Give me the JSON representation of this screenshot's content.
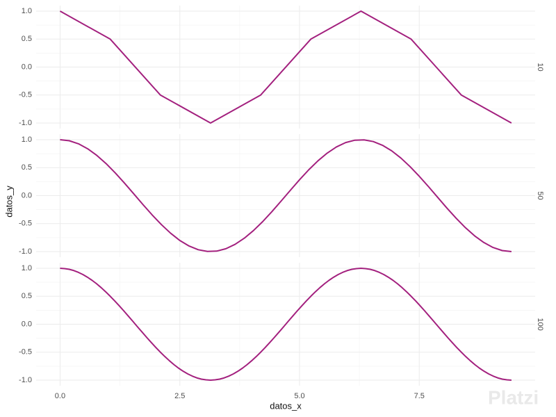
{
  "axis_labels": {
    "x": "datos_x",
    "y": "datos_y"
  },
  "watermark": "Platzi",
  "chart_data": [
    {
      "type": "line",
      "facet_label": "10",
      "color": "#a3207e",
      "x": [
        0,
        1.047,
        2.094,
        3.142,
        4.189,
        5.236,
        6.283,
        7.33,
        8.378,
        9.425
      ],
      "values": [
        1,
        0.5,
        -0.5,
        -1,
        -0.5,
        0.5,
        1,
        0.5,
        -0.5,
        -1
      ],
      "ylim": [
        -1.1,
        1.1
      ],
      "yticks": [
        {
          "value": -1,
          "label": "-1.0"
        },
        {
          "value": -0.5,
          "label": "-0.5"
        },
        {
          "value": 0,
          "label": "0.0"
        },
        {
          "value": 0.5,
          "label": "0.5"
        },
        {
          "value": 1,
          "label": "1.0"
        }
      ],
      "grid": true
    },
    {
      "type": "line",
      "facet_label": "50",
      "color": "#a3207e",
      "x": [
        0,
        0.192,
        0.385,
        0.577,
        0.769,
        0.962,
        1.154,
        1.346,
        1.539,
        1.731,
        1.923,
        2.116,
        2.308,
        2.5,
        2.693,
        2.885,
        3.077,
        3.27,
        3.462,
        3.654,
        3.847,
        4.039,
        4.232,
        4.424,
        4.616,
        4.809,
        5.001,
        5.193,
        5.386,
        5.578,
        5.77,
        5.963,
        6.155,
        6.347,
        6.54,
        6.732,
        6.924,
        7.117,
        7.309,
        7.501,
        7.694,
        7.886,
        8.078,
        8.271,
        8.463,
        8.655,
        8.848,
        9.04,
        9.232,
        9.425
      ],
      "values": [
        1,
        0.982,
        0.927,
        0.838,
        0.718,
        0.572,
        0.405,
        0.223,
        0.032,
        -0.16,
        -0.345,
        -0.518,
        -0.672,
        -0.802,
        -0.901,
        -0.967,
        -0.998,
        -0.992,
        -0.949,
        -0.871,
        -0.761,
        -0.624,
        -0.463,
        -0.285,
        -0.096,
        0.096,
        0.285,
        0.463,
        0.624,
        0.761,
        0.871,
        0.949,
        0.992,
        0.998,
        0.967,
        0.901,
        0.802,
        0.672,
        0.518,
        0.345,
        0.16,
        -0.032,
        -0.223,
        -0.405,
        -0.572,
        -0.718,
        -0.838,
        -0.927,
        -0.982,
        -1
      ],
      "ylim": [
        -1.1,
        1.1
      ],
      "yticks": [
        {
          "value": -1,
          "label": "-1.0"
        },
        {
          "value": -0.5,
          "label": "-0.5"
        },
        {
          "value": 0,
          "label": "0.0"
        },
        {
          "value": 0.5,
          "label": "0.5"
        },
        {
          "value": 1,
          "label": "1.0"
        }
      ],
      "grid": true
    },
    {
      "type": "line",
      "facet_label": "100",
      "color": "#a3207e",
      "x": [
        0,
        0.095,
        0.19,
        0.286,
        0.381,
        0.476,
        0.571,
        0.666,
        0.762,
        0.857,
        0.952,
        1.047,
        1.142,
        1.238,
        1.333,
        1.428,
        1.523,
        1.618,
        1.714,
        1.809,
        1.904,
        1.999,
        2.094,
        2.19,
        2.285,
        2.38,
        2.475,
        2.57,
        2.666,
        2.761,
        2.856,
        2.951,
        3.046,
        3.142,
        3.237,
        3.332,
        3.427,
        3.522,
        3.618,
        3.713,
        3.808,
        3.903,
        3.998,
        4.094,
        4.189,
        4.284,
        4.379,
        4.474,
        4.57,
        4.665,
        4.76,
        4.855,
        4.95,
        5.046,
        5.141,
        5.236,
        5.331,
        5.426,
        5.522,
        5.617,
        5.712,
        5.807,
        5.902,
        5.998,
        6.093,
        6.188,
        6.283,
        6.378,
        6.474,
        6.569,
        6.664,
        6.759,
        6.854,
        6.95,
        7.045,
        7.14,
        7.235,
        7.33,
        7.426,
        7.521,
        7.616,
        7.711,
        7.806,
        7.902,
        7.997,
        8.092,
        8.187,
        8.282,
        8.378,
        8.473,
        8.568,
        8.663,
        8.758,
        8.854,
        8.949,
        9.044,
        9.139,
        9.234,
        9.33,
        9.425
      ],
      "values": [
        1,
        0.995,
        0.982,
        0.96,
        0.928,
        0.889,
        0.841,
        0.786,
        0.724,
        0.655,
        0.58,
        0.5,
        0.415,
        0.327,
        0.236,
        0.142,
        0.048,
        -0.048,
        -0.142,
        -0.236,
        -0.327,
        -0.415,
        -0.5,
        -0.58,
        -0.655,
        -0.724,
        -0.786,
        -0.841,
        -0.889,
        -0.928,
        -0.96,
        -0.982,
        -0.995,
        -1,
        -0.995,
        -0.982,
        -0.96,
        -0.928,
        -0.889,
        -0.841,
        -0.786,
        -0.724,
        -0.655,
        -0.58,
        -0.5,
        -0.415,
        -0.327,
        -0.236,
        -0.142,
        -0.048,
        0.048,
        0.142,
        0.236,
        0.327,
        0.415,
        0.5,
        0.58,
        0.655,
        0.724,
        0.786,
        0.841,
        0.889,
        0.928,
        0.96,
        0.982,
        0.995,
        1,
        0.995,
        0.982,
        0.96,
        0.928,
        0.889,
        0.841,
        0.786,
        0.724,
        0.655,
        0.58,
        0.5,
        0.415,
        0.327,
        0.236,
        0.142,
        0.048,
        -0.048,
        -0.142,
        -0.236,
        -0.327,
        -0.415,
        -0.5,
        -0.58,
        -0.655,
        -0.724,
        -0.786,
        -0.841,
        -0.889,
        -0.928,
        -0.96,
        -0.982,
        -0.995,
        -1
      ],
      "ylim": [
        -1.1,
        1.1
      ],
      "yticks": [
        {
          "value": -1,
          "label": "-1.0"
        },
        {
          "value": -0.5,
          "label": "-0.5"
        },
        {
          "value": 0,
          "label": "0.0"
        },
        {
          "value": 0.5,
          "label": "0.5"
        },
        {
          "value": 1,
          "label": "1.0"
        }
      ],
      "xlim": [
        -0.5,
        9.92
      ],
      "xticks": [
        {
          "value": 0,
          "label": "0.0"
        },
        {
          "value": 2.5,
          "label": "2.5"
        },
        {
          "value": 5,
          "label": "5.0"
        },
        {
          "value": 7.5,
          "label": "7.5"
        }
      ],
      "grid": true
    }
  ]
}
